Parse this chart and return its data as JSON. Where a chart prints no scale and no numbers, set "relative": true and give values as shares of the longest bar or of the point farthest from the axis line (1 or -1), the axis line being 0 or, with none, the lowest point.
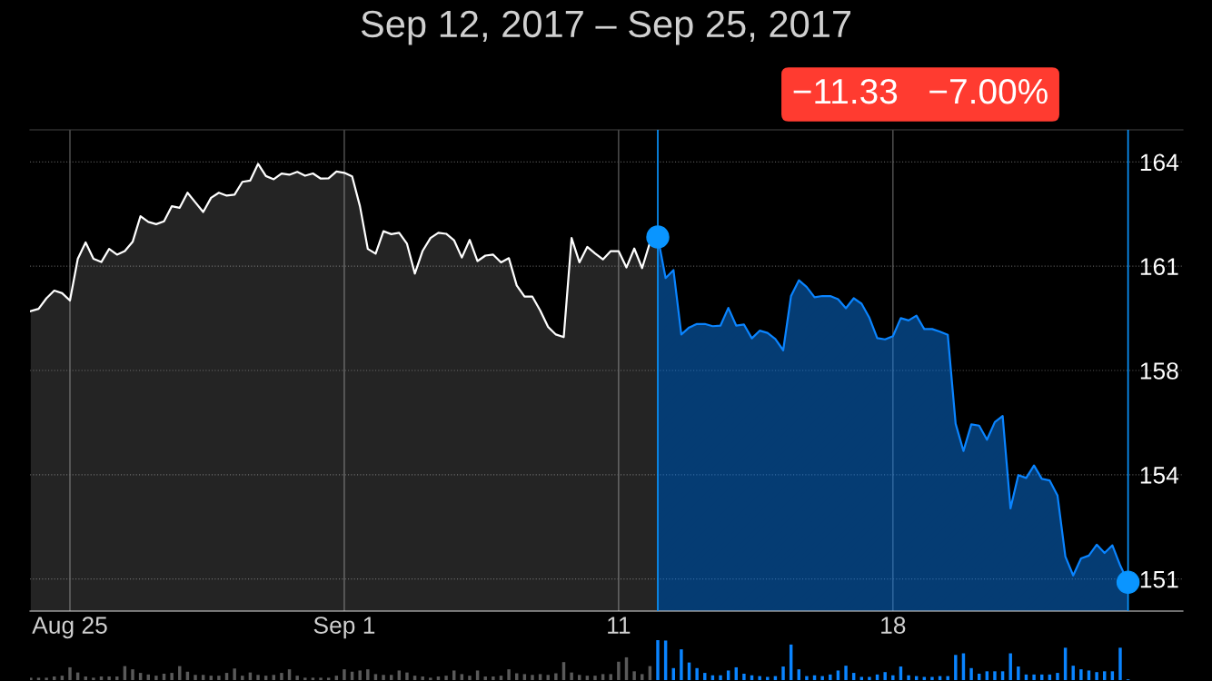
{
  "chart_data": [
    {
      "type": "area",
      "title": "Sep 12, 2017 – Sep 25, 2017",
      "annotations": [
        "−11.33   −7.00%"
      ],
      "categories": [
        null,
        null,
        null,
        null,
        null,
        "Aug 25",
        null,
        null,
        null,
        null,
        null,
        null,
        null,
        null,
        null,
        null,
        null,
        null,
        null,
        null,
        null,
        null,
        null,
        null,
        null,
        null,
        null,
        null,
        null,
        null,
        null,
        null,
        null,
        null,
        null,
        null,
        null,
        null,
        null,
        null,
        "Sep 1",
        null,
        null,
        null,
        null,
        null,
        null,
        null,
        null,
        null,
        null,
        null,
        null,
        null,
        null,
        null,
        null,
        null,
        null,
        null,
        null,
        null,
        null,
        null,
        null,
        null,
        null,
        null,
        null,
        null,
        null,
        null,
        null,
        null,
        null,
        "11",
        null,
        null,
        null,
        null,
        null,
        null,
        null,
        null,
        null,
        null,
        null,
        null,
        null,
        null,
        null,
        null,
        null,
        null,
        null,
        null,
        null,
        null,
        null,
        null,
        null,
        null,
        null,
        null,
        null,
        null,
        null,
        null,
        null,
        null,
        "18",
        null,
        null,
        null,
        null,
        null,
        null,
        null,
        null,
        null,
        null,
        null,
        null,
        null,
        null,
        null,
        null,
        null,
        null,
        null,
        null,
        null,
        null,
        null,
        null,
        null,
        null,
        null,
        null,
        null,
        null
      ],
      "ylim": [
        150,
        165
      ],
      "yticks": [
        {
          "value": 151,
          "label": "151"
        },
        {
          "value": 154.25,
          "label": "154"
        },
        {
          "value": 157.5,
          "label": "158"
        },
        {
          "value": 160.75,
          "label": "161"
        },
        {
          "value": 164,
          "label": "164"
        }
      ],
      "grid": true,
      "series": [
        {
          "type": "area",
          "color": "#ffffff",
          "values": [
            159.35,
            159.42,
            159.75,
            159.99,
            159.91,
            159.68,
            160.98,
            161.49,
            160.98,
            160.88,
            161.29,
            161.11,
            161.22,
            161.51,
            162.31,
            162.13,
            162.06,
            162.15,
            162.62,
            162.57,
            163.04,
            162.74,
            162.44,
            162.88,
            163.04,
            162.95,
            162.98,
            163.38,
            163.42,
            163.94,
            163.56,
            163.46,
            163.64,
            163.6,
            163.69,
            163.57,
            163.64,
            163.48,
            163.49,
            163.7,
            163.66,
            163.55,
            162.62,
            161.29,
            161.14,
            161.84,
            161.75,
            161.79,
            161.45,
            160.52,
            161.23,
            161.63,
            161.79,
            161.76,
            161.56,
            161.02,
            161.57,
            160.91,
            161.08,
            161.11,
            160.87,
            161.0,
            160.15,
            159.8,
            159.8,
            159.37,
            158.86,
            158.62,
            158.54,
            161.63,
            160.87,
            161.35,
            161.15,
            160.96,
            161.22,
            161.22,
            160.71,
            161.3,
            160.69,
            161.49,
            161.66,
            null,
            null,
            null,
            null,
            null,
            null,
            null,
            null,
            null,
            null,
            null,
            null,
            null,
            null,
            null,
            null,
            null,
            null,
            null,
            null,
            null,
            null,
            null,
            null,
            null,
            null,
            null,
            null,
            null,
            null,
            null,
            null,
            null,
            null,
            null,
            null,
            null,
            null,
            null,
            null,
            null,
            null,
            null,
            null,
            null,
            null,
            null,
            null,
            null,
            null,
            null,
            null,
            null,
            null,
            null,
            null,
            null,
            null,
            null,
            null
          ]
        },
        {
          "type": "area",
          "color": "#0a84ff",
          "values": [
            null,
            null,
            null,
            null,
            null,
            null,
            null,
            null,
            null,
            null,
            null,
            null,
            null,
            null,
            null,
            null,
            null,
            null,
            null,
            null,
            null,
            null,
            null,
            null,
            null,
            null,
            null,
            null,
            null,
            null,
            null,
            null,
            null,
            null,
            null,
            null,
            null,
            null,
            null,
            null,
            null,
            null,
            null,
            null,
            null,
            null,
            null,
            null,
            null,
            null,
            null,
            null,
            null,
            null,
            null,
            null,
            null,
            null,
            null,
            null,
            null,
            null,
            null,
            null,
            null,
            null,
            null,
            null,
            null,
            null,
            null,
            null,
            null,
            null,
            null,
            null,
            null,
            null,
            null,
            null,
            161.66,
            160.38,
            160.63,
            158.62,
            158.84,
            158.95,
            158.95,
            158.88,
            158.9,
            159.45,
            158.9,
            158.93,
            158.5,
            158.74,
            158.67,
            158.48,
            158.13,
            159.82,
            160.31,
            160.1,
            159.78,
            159.82,
            159.82,
            159.72,
            159.44,
            159.75,
            159.58,
            159.14,
            158.51,
            158.47,
            158.57,
            159.13,
            159.06,
            159.21,
            158.79,
            158.79,
            158.71,
            158.61,
            155.84,
            154.99,
            155.82,
            155.78,
            155.34,
            155.89,
            156.08,
            153.2,
            154.24,
            154.15,
            154.54,
            154.12,
            154.07,
            153.6,
            151.7,
            151.11,
            151.64,
            151.73,
            152.07,
            151.81,
            152.05,
            151.42,
            150.9
          ]
        },
        {
          "type": "scatter",
          "color": "#0a95ff",
          "values": [
            null,
            null,
            null,
            null,
            null,
            null,
            null,
            null,
            null,
            null,
            null,
            null,
            null,
            null,
            null,
            null,
            null,
            null,
            null,
            null,
            null,
            null,
            null,
            null,
            null,
            null,
            null,
            null,
            null,
            null,
            null,
            null,
            null,
            null,
            null,
            null,
            null,
            null,
            null,
            null,
            null,
            null,
            null,
            null,
            null,
            null,
            null,
            null,
            null,
            null,
            null,
            null,
            null,
            null,
            null,
            null,
            null,
            null,
            null,
            null,
            null,
            null,
            null,
            null,
            null,
            null,
            null,
            null,
            null,
            null,
            null,
            null,
            null,
            null,
            null,
            null,
            null,
            null,
            null,
            null,
            161.66,
            null,
            null,
            null,
            null,
            null,
            null,
            null,
            null,
            null,
            null,
            null,
            null,
            null,
            null,
            null,
            null,
            null,
            null,
            null,
            null,
            null,
            null,
            null,
            null,
            null,
            null,
            null,
            null,
            null,
            null,
            null,
            null,
            null,
            null,
            null,
            null,
            null,
            null,
            null,
            null,
            null,
            null,
            null,
            null,
            null,
            null,
            null,
            null,
            null,
            null,
            null,
            null,
            null,
            null,
            null,
            null,
            null,
            null,
            null,
            150.9
          ]
        }
      ]
    },
    {
      "type": "bar",
      "relative": true,
      "categories": [
        null,
        null,
        null,
        null,
        null,
        null,
        null,
        null,
        null,
        null,
        null,
        null,
        null,
        null,
        null,
        null,
        null,
        null,
        null,
        null,
        null,
        null,
        null,
        null,
        null,
        null,
        null,
        null,
        null,
        null,
        null,
        null,
        null,
        null,
        null,
        null,
        null,
        null,
        null,
        null,
        null,
        null,
        null,
        null,
        null,
        null,
        null,
        null,
        null,
        null,
        null,
        null,
        null,
        null,
        null,
        null,
        null,
        null,
        null,
        null,
        null,
        null,
        null,
        null,
        null,
        null,
        null,
        null,
        null,
        null,
        null,
        null,
        null,
        null,
        null,
        null,
        null,
        null,
        null,
        null,
        null,
        null,
        null,
        null,
        null,
        null,
        null,
        null,
        null,
        null,
        null,
        null,
        null,
        null,
        null,
        null,
        null,
        null,
        null,
        null,
        null,
        null,
        null,
        null,
        null,
        null,
        null,
        null,
        null,
        null,
        null,
        null,
        null,
        null,
        null,
        null,
        null,
        null,
        null,
        null,
        null,
        null,
        null,
        null,
        null,
        null,
        null,
        null,
        null,
        null,
        null,
        null,
        null,
        null,
        null,
        null,
        null,
        null,
        null,
        null,
        null
      ],
      "values": [
        0.06,
        0.06,
        0.06,
        0.09,
        0.11,
        0.32,
        0.19,
        0.09,
        0.06,
        0.09,
        0.09,
        0.09,
        0.35,
        0.27,
        0.18,
        0.14,
        0.11,
        0.16,
        0.18,
        0.35,
        0.21,
        0.13,
        0.13,
        0.11,
        0.11,
        0.18,
        0.29,
        0.11,
        0.19,
        0.13,
        0.11,
        0.13,
        0.18,
        0.27,
        0.11,
        0.06,
        0.06,
        0.06,
        0.06,
        0.11,
        0.27,
        0.21,
        0.24,
        0.27,
        0.15,
        0.13,
        0.13,
        0.24,
        0.19,
        0.11,
        0.09,
        0.06,
        0.09,
        0.11,
        0.24,
        0.15,
        0.11,
        0.24,
        0.09,
        0.09,
        0.11,
        0.27,
        0.17,
        0.15,
        0.13,
        0.15,
        0.13,
        0.17,
        0.45,
        0.19,
        0.13,
        0.11,
        0.11,
        0.15,
        0.15,
        0.46,
        0.57,
        0.22,
        0.15,
        0.35,
        1,
        0.99,
        0.3,
        0.77,
        0.44,
        0.3,
        0.18,
        0.12,
        0.12,
        0.24,
        0.32,
        0.16,
        0.12,
        0.1,
        0.08,
        0.1,
        0.34,
        0.89,
        0.27,
        0.1,
        0.12,
        0.1,
        0.14,
        0.24,
        0.36,
        0.18,
        0.08,
        0.08,
        0.14,
        0.2,
        0.12,
        0.34,
        0.12,
        0.1,
        0.08,
        0.08,
        0.1,
        0.1,
        0.63,
        0.67,
        0.3,
        0.16,
        0.22,
        0.22,
        0.22,
        0.67,
        0.34,
        0.14,
        0.14,
        0.14,
        0.14,
        0.18,
        0.81,
        0.36,
        0.27,
        0.24,
        0.2,
        0.22,
        0.22,
        0.81,
        0.02
      ],
      "colors": [
        "#5a5a5a",
        "#5a5a5a",
        "#5a5a5a",
        "#5a5a5a",
        "#5a5a5a",
        "#5a5a5a",
        "#5a5a5a",
        "#5a5a5a",
        "#5a5a5a",
        "#5a5a5a",
        "#5a5a5a",
        "#5a5a5a",
        "#5a5a5a",
        "#5a5a5a",
        "#5a5a5a",
        "#5a5a5a",
        "#5a5a5a",
        "#5a5a5a",
        "#5a5a5a",
        "#5a5a5a",
        "#5a5a5a",
        "#5a5a5a",
        "#5a5a5a",
        "#5a5a5a",
        "#5a5a5a",
        "#5a5a5a",
        "#5a5a5a",
        "#5a5a5a",
        "#5a5a5a",
        "#5a5a5a",
        "#5a5a5a",
        "#5a5a5a",
        "#5a5a5a",
        "#5a5a5a",
        "#5a5a5a",
        "#5a5a5a",
        "#5a5a5a",
        "#5a5a5a",
        "#5a5a5a",
        "#5a5a5a",
        "#5a5a5a",
        "#5a5a5a",
        "#5a5a5a",
        "#5a5a5a",
        "#5a5a5a",
        "#5a5a5a",
        "#5a5a5a",
        "#5a5a5a",
        "#5a5a5a",
        "#5a5a5a",
        "#5a5a5a",
        "#5a5a5a",
        "#5a5a5a",
        "#5a5a5a",
        "#5a5a5a",
        "#5a5a5a",
        "#5a5a5a",
        "#5a5a5a",
        "#5a5a5a",
        "#5a5a5a",
        "#5a5a5a",
        "#5a5a5a",
        "#5a5a5a",
        "#5a5a5a",
        "#5a5a5a",
        "#5a5a5a",
        "#5a5a5a",
        "#5a5a5a",
        "#5a5a5a",
        "#5a5a5a",
        "#5a5a5a",
        "#5a5a5a",
        "#5a5a5a",
        "#5a5a5a",
        "#5a5a5a",
        "#5a5a5a",
        "#5a5a5a",
        "#5a5a5a",
        "#5a5a5a",
        "#5a5a5a",
        "#0a84ff",
        "#0a84ff",
        "#0a84ff",
        "#0a84ff",
        "#0a84ff",
        "#0a84ff",
        "#0a84ff",
        "#0a84ff",
        "#0a84ff",
        "#0a84ff",
        "#0a84ff",
        "#0a84ff",
        "#0a84ff",
        "#0a84ff",
        "#0a84ff",
        "#0a84ff",
        "#0a84ff",
        "#0a84ff",
        "#0a84ff",
        "#0a84ff",
        "#0a84ff",
        "#0a84ff",
        "#0a84ff",
        "#0a84ff",
        "#0a84ff",
        "#0a84ff",
        "#0a84ff",
        "#0a84ff",
        "#0a84ff",
        "#0a84ff",
        "#0a84ff",
        "#0a84ff",
        "#0a84ff",
        "#0a84ff",
        "#0a84ff",
        "#0a84ff",
        "#0a84ff",
        "#0a84ff",
        "#0a84ff",
        "#0a84ff",
        "#0a84ff",
        "#0a84ff",
        "#0a84ff",
        "#0a84ff",
        "#0a84ff",
        "#0a84ff",
        "#0a84ff",
        "#0a84ff",
        "#0a84ff",
        "#0a84ff",
        "#0a84ff",
        "#0a84ff",
        "#0a84ff",
        "#0a84ff",
        "#0a84ff",
        "#0a84ff",
        "#0a84ff",
        "#0a84ff",
        "#0a84ff",
        "#0a84ff",
        "#0a84ff"
      ]
    }
  ]
}
